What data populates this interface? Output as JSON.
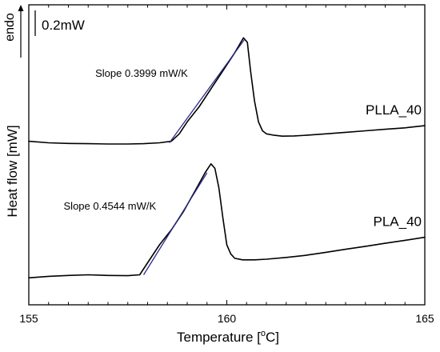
{
  "chart_data": {
    "type": "line",
    "title": "",
    "xlabel_prefix": "Temperature [",
    "xlabel_degree": "o",
    "xlabel_suffix": "C]",
    "ylabel": "Heat flow [mW]",
    "xlim": [
      155,
      165
    ],
    "xticks": [
      155,
      160,
      165
    ],
    "xtick_labels": [
      "155",
      "160",
      "165"
    ],
    "minor_x_step": 0.5,
    "grid": false,
    "y_units": "mW",
    "ylim": [
      0,
      1.0
    ],
    "endo_label": "endo",
    "scale_bar": {
      "label": "0.2mW",
      "value": 0.2
    },
    "series": [
      {
        "name": "PLLA_40",
        "color": "#000000",
        "x": [
          155.0,
          155.5,
          156.0,
          156.5,
          157.0,
          157.5,
          157.9,
          158.3,
          158.6,
          158.8,
          159.0,
          159.3,
          159.6,
          159.9,
          160.2,
          160.42,
          160.52,
          160.6,
          160.7,
          160.8,
          160.9,
          161.0,
          161.2,
          161.4,
          161.7,
          162.0,
          162.5,
          163.0,
          163.5,
          164.0,
          164.5,
          165.0
        ],
        "y": [
          0.545,
          0.54,
          0.538,
          0.537,
          0.536,
          0.536,
          0.537,
          0.54,
          0.545,
          0.57,
          0.61,
          0.66,
          0.72,
          0.78,
          0.84,
          0.89,
          0.875,
          0.78,
          0.68,
          0.61,
          0.58,
          0.57,
          0.565,
          0.562,
          0.563,
          0.565,
          0.57,
          0.575,
          0.58,
          0.585,
          0.59,
          0.597
        ]
      },
      {
        "name": "PLA_40",
        "color": "#000000",
        "x": [
          155.0,
          155.5,
          156.0,
          156.5,
          157.0,
          157.5,
          157.8,
          158.0,
          158.3,
          158.6,
          158.9,
          159.2,
          159.45,
          159.6,
          159.7,
          159.8,
          159.9,
          160.0,
          160.1,
          160.2,
          160.4,
          160.7,
          161.0,
          161.5,
          162.0,
          162.5,
          163.0,
          163.5,
          164.0,
          164.5,
          165.0
        ],
        "y": [
          0.09,
          0.095,
          0.098,
          0.1,
          0.098,
          0.097,
          0.1,
          0.14,
          0.2,
          0.25,
          0.31,
          0.38,
          0.44,
          0.47,
          0.455,
          0.39,
          0.29,
          0.2,
          0.17,
          0.155,
          0.15,
          0.15,
          0.152,
          0.158,
          0.165,
          0.175,
          0.185,
          0.195,
          0.205,
          0.215,
          0.225
        ]
      }
    ],
    "slope_lines": [
      {
        "label": "Slope 0.3999 mW/K",
        "color": "#2c2c8a",
        "x": [
          158.55,
          160.45
        ],
        "y": [
          0.54,
          0.885
        ]
      },
      {
        "label": "Slope 0.4544 mW/K",
        "color": "#2c2c8a",
        "x": [
          157.9,
          159.5
        ],
        "y": [
          0.1,
          0.44
        ]
      }
    ]
  }
}
